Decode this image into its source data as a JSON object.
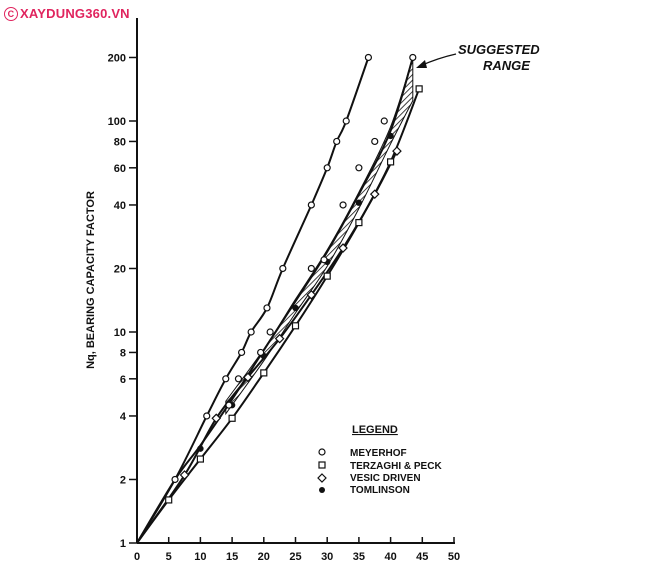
{
  "watermark": {
    "symbol": "C",
    "text": "XAYDUNG360.VN"
  },
  "chart_data": {
    "type": "scatter",
    "ylabel": "Nq, BEARING CAPACITY FACTOR",
    "y_scale": "log",
    "xlim": [
      0,
      50
    ],
    "ylim": [
      1,
      300
    ],
    "x_ticks": [
      "0",
      "5",
      "10",
      "15",
      "20",
      "25",
      "30",
      "35",
      "40",
      "45",
      "50"
    ],
    "y_ticks": [
      "1",
      "2",
      "4",
      "6",
      "8",
      "10",
      "20",
      "40",
      "60",
      "80",
      "100",
      "200"
    ],
    "annotation": {
      "line1": "SUGGESTED",
      "line2": "RANGE"
    },
    "legend": {
      "title": "LEGEND",
      "placement": "bottom-right"
    },
    "series": [
      {
        "name": "MEYERHOF",
        "marker": "circle-open",
        "x": [
          6,
          11,
          14,
          16.5,
          18,
          20.5,
          23,
          27.5,
          30,
          31.5,
          33,
          36.5
        ],
        "y": [
          2,
          4,
          6,
          8,
          10,
          13,
          20,
          40,
          60,
          80,
          100,
          200
        ]
      },
      {
        "name": "TERZAGHI & PECK",
        "marker": "square-open",
        "x": [
          5,
          10,
          15,
          20,
          25,
          30,
          35,
          40,
          44.5
        ],
        "y": [
          1.6,
          2.5,
          3.9,
          6.4,
          10.7,
          18.4,
          33,
          64,
          142
        ]
      },
      {
        "name": "VESIC DRIVEN",
        "marker": "diamond-open",
        "x": [
          7.5,
          12.5,
          17.5,
          22.5,
          27.5,
          32.5,
          37.5,
          41
        ],
        "y": [
          2.1,
          3.9,
          6.1,
          9.3,
          15,
          25,
          45,
          72
        ]
      },
      {
        "name": "TOMLINSON",
        "marker": "circle-filled",
        "x": [
          10,
          15,
          20,
          25,
          30,
          35,
          40
        ],
        "y": [
          2.8,
          4.5,
          7.7,
          13,
          21.5,
          41,
          85
        ]
      },
      {
        "name": "",
        "marker": "circle-open",
        "x": [
          14.5,
          16,
          19.5,
          21,
          27.5,
          29.5,
          32.5,
          35,
          37.5,
          39,
          43.5
        ],
        "y": [
          4.5,
          6,
          8,
          10,
          20,
          22,
          40,
          60,
          80,
          100,
          200
        ]
      }
    ],
    "curves": [
      {
        "x": [
          0,
          6,
          11,
          14,
          16.5,
          18,
          20.5,
          23,
          27.5,
          30,
          31.5,
          33,
          36.5
        ],
        "y": [
          1,
          2,
          4,
          6,
          8,
          10,
          13,
          20,
          40,
          60,
          80,
          100,
          200
        ]
      },
      {
        "x": [
          0,
          5,
          10,
          15,
          20,
          25,
          30,
          35,
          40,
          44.5
        ],
        "y": [
          1,
          1.6,
          2.5,
          3.9,
          6.4,
          10.7,
          18.4,
          33,
          64,
          142
        ]
      },
      {
        "x": [
          0,
          7.5,
          12.5,
          17.5,
          22.5,
          27.5,
          32.5,
          37.5,
          41
        ],
        "y": [
          1,
          2.1,
          3.9,
          6.1,
          9.3,
          15,
          25,
          45,
          72
        ]
      },
      {
        "x": [
          0,
          6,
          10,
          15,
          20,
          25,
          30,
          35,
          40,
          43.5
        ],
        "y": [
          1,
          2,
          2.9,
          4.8,
          8.2,
          14,
          24,
          45,
          90,
          200
        ]
      }
    ],
    "range_band": {
      "x": [
        14,
        20,
        25,
        30,
        35,
        40,
        43.5
      ],
      "y_low": [
        4.1,
        7.3,
        12.3,
        20.5,
        38.5,
        78,
        125
      ],
      "y_high": [
        4.7,
        8.3,
        14.3,
        24.5,
        46,
        94,
        200
      ]
    }
  }
}
